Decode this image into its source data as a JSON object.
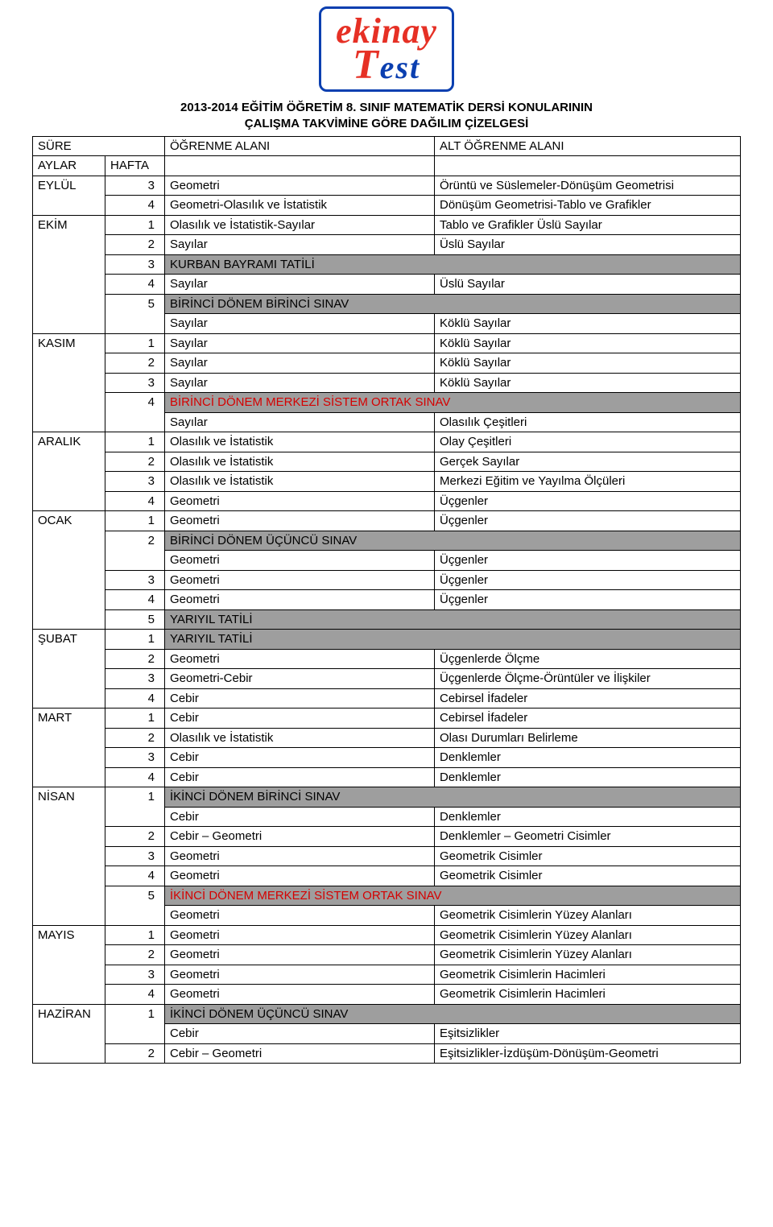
{
  "logo": {
    "line1": "ekinay",
    "line2_t": "T",
    "line2_rest": "est"
  },
  "heading": {
    "l1": "2013-2014 EĞİTİM ÖĞRETİM 8. SINIF MATEMATİK DERSİ KONULARININ",
    "l2": "ÇALIŞMA TAKVİMİNE GÖRE DAĞILIM ÇİZELGESİ"
  },
  "header": {
    "sure": "SÜRE",
    "ogrenme": "ÖĞRENME ALANI",
    "alt": "ALT ÖĞRENME ALANI",
    "aylar": "AYLAR",
    "hafta": "HAFTA"
  },
  "months": {
    "eylul": "EYLÜL",
    "ekim": "EKİM",
    "kasim": "KASIM",
    "aralik": "ARALIK",
    "ocak": "OCAK",
    "subat": "ŞUBAT",
    "mart": "MART",
    "nisan": "NİSAN",
    "mayis": "MAYIS",
    "haziran": "HAZİRAN"
  },
  "rows": {
    "eylul3": {
      "n": "3",
      "c3": "Geometri",
      "c4": "Örüntü ve Süslemeler-Dönüşüm Geometrisi"
    },
    "eylul4": {
      "n": "4",
      "c3": "Geometri-Olasılık ve İstatistik",
      "c4": "Dönüşüm Geometrisi-Tablo ve Grafikler"
    },
    "ekim1": {
      "n": "1",
      "c3": "Olasılık ve İstatistik-Sayılar",
      "c4": "Tablo ve Grafikler Üslü Sayılar"
    },
    "ekim2": {
      "n": "2",
      "c3": "Sayılar",
      "c4": "Üslü Sayılar"
    },
    "ekim3": {
      "n": "3",
      "banner": "KURBAN BAYRAMI TATİLİ"
    },
    "ekim4": {
      "n": "4",
      "c3": "Sayılar",
      "c4": "Üslü Sayılar"
    },
    "ekim5_banner": "BİRİNCİ DÖNEM BİRİNCİ SINAV",
    "ekim5": {
      "n": "5",
      "c3": "Sayılar",
      "c4": "Köklü Sayılar"
    },
    "kasim1": {
      "n": "1",
      "c3": "Sayılar",
      "c4": "Köklü Sayılar"
    },
    "kasim2": {
      "n": "2",
      "c3": "Sayılar",
      "c4": "Köklü Sayılar"
    },
    "kasim3": {
      "n": "3",
      "c3": "Sayılar",
      "c4": "Köklü Sayılar"
    },
    "kasim4_banner": "BİRİNCİ DÖNEM MERKEZİ SİSTEM ORTAK SINAV",
    "kasim4": {
      "n": "4",
      "c3": "Sayılar",
      "c4": "Olasılık Çeşitleri"
    },
    "aralik1": {
      "n": "1",
      "c3": "Olasılık ve İstatistik",
      "c4": "Olay Çeşitleri"
    },
    "aralik2": {
      "n": "2",
      "c3": "Olasılık ve İstatistik",
      "c4": "Gerçek Sayılar"
    },
    "aralik3": {
      "n": "3",
      "c3": "Olasılık ve İstatistik",
      "c4": "Merkezi Eğitim ve Yayılma Ölçüleri"
    },
    "aralik4": {
      "n": "4",
      "c3": "Geometri",
      "c4": "Üçgenler"
    },
    "ocak1": {
      "n": "1",
      "c3": "Geometri",
      "c4": "Üçgenler"
    },
    "ocak2_banner": "BİRİNCİ DÖNEM ÜÇÜNCÜ SINAV",
    "ocak2": {
      "n": "2",
      "c3": "Geometri",
      "c4": "Üçgenler"
    },
    "ocak3": {
      "n": "3",
      "c3": "Geometri",
      "c4": "Üçgenler"
    },
    "ocak4": {
      "n": "4",
      "c3": "Geometri",
      "c4": "Üçgenler"
    },
    "ocak5": {
      "n": "5",
      "banner": "YARIYIL TATİLİ"
    },
    "subat1": {
      "n": "1",
      "banner": "YARIYIL TATİLİ"
    },
    "subat2": {
      "n": "2",
      "c3": "Geometri",
      "c4": "Üçgenlerde Ölçme"
    },
    "subat3": {
      "n": "3",
      "c3": "Geometri-Cebir",
      "c4": "Üçgenlerde Ölçme-Örüntüler ve İlişkiler"
    },
    "subat4": {
      "n": "4",
      "c3": "Cebir",
      "c4": "Cebirsel İfadeler"
    },
    "mart1": {
      "n": "1",
      "c3": "Cebir",
      "c4": "Cebirsel İfadeler"
    },
    "mart2": {
      "n": "2",
      "c3": "Olasılık ve İstatistik",
      "c4": "Olası Durumları Belirleme"
    },
    "mart3": {
      "n": "3",
      "c3": "Cebir",
      "c4": "Denklemler"
    },
    "mart4": {
      "n": "4",
      "c3": "Cebir",
      "c4": "Denklemler"
    },
    "nisan_banner": "İKİNCİ DÖNEM BİRİNCİ SINAV",
    "nisan1": {
      "n": "1",
      "c3": "Cebir",
      "c4": "Denklemler"
    },
    "nisan2": {
      "n": "2",
      "c3": "Cebir – Geometri",
      "c4": "Denklemler – Geometri Cisimler"
    },
    "nisan3": {
      "n": "3",
      "c3": "Geometri",
      "c4": "Geometrik Cisimler"
    },
    "nisan4": {
      "n": "4",
      "c3": "Geometri",
      "c4": "Geometrik Cisimler"
    },
    "nisan5_banner": "İKİNCİ DÖNEM MERKEZİ SİSTEM ORTAK SINAV",
    "nisan5": {
      "n": "5",
      "c3": "Geometri",
      "c4": "Geometrik Cisimlerin Yüzey Alanları"
    },
    "mayis1": {
      "n": "1",
      "c3": "Geometri",
      "c4": "Geometrik Cisimlerin Yüzey Alanları"
    },
    "mayis2": {
      "n": "2",
      "c3": "Geometri",
      "c4": "Geometrik Cisimlerin Yüzey Alanları"
    },
    "mayis3": {
      "n": "3",
      "c3": "Geometri",
      "c4": "Geometrik Cisimlerin Hacimleri"
    },
    "mayis4": {
      "n": "4",
      "c3": "Geometri",
      "c4": "Geometrik Cisimlerin Hacimleri"
    },
    "haziran1": {
      "n": "1",
      "banner": "İKİNCİ DÖNEM ÜÇÜNCÜ SINAV"
    },
    "haziran1b": {
      "c3": "Cebir",
      "c4": "Eşitsizlikler"
    },
    "haziran2": {
      "n": "2",
      "c3": "Cebir – Geometri",
      "c4": "Eşitsizlikler-İzdüşüm-Dönüşüm-Geometri"
    }
  },
  "style": {
    "grey": "#9e9e9e",
    "red": "#d50000",
    "border": "#000000",
    "text": "#000000",
    "logo_red": "#e63025",
    "logo_blue": "#0b3fb0",
    "font_size_body": 15,
    "font_size_logo1": 44,
    "font_size_logo2": 40
  }
}
